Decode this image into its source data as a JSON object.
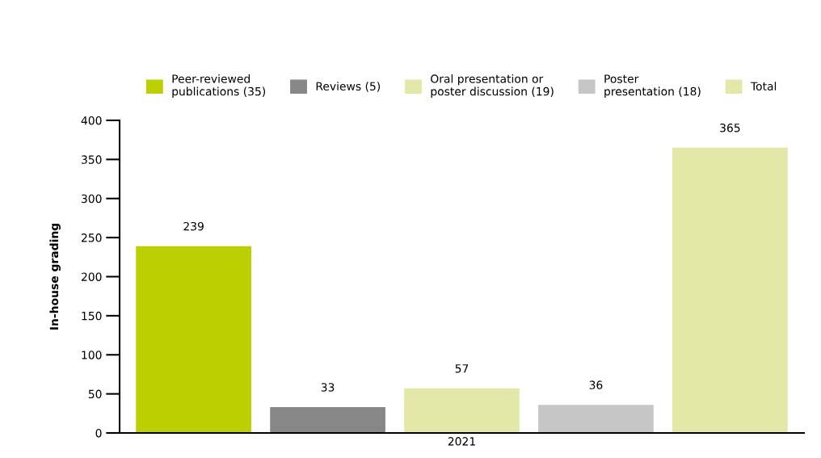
{
  "chart_data": {
    "type": "bar",
    "categories": [
      "2021"
    ],
    "ylabel": "In-house grading",
    "series": [
      {
        "name": "Peer-reviewed\npublications (35)",
        "color": "#bccf00",
        "values": [
          239
        ]
      },
      {
        "name": "Reviews (5)",
        "color": "#878787",
        "values": [
          33
        ]
      },
      {
        "name": "Oral presentation or\nposter discussion (19)",
        "color": "#e3e8a8",
        "values": [
          57
        ]
      },
      {
        "name": "Poster\npresentation (18)",
        "color": "#c6c6c6",
        "values": [
          36
        ]
      },
      {
        "name": "Total",
        "color": "#e3e8a8",
        "values": [
          365
        ]
      }
    ],
    "ylim": [
      0,
      400
    ],
    "yticks": [
      0,
      50,
      100,
      150,
      200,
      250,
      300,
      350,
      400
    ],
    "data_labels": true,
    "legend": "top",
    "grid": false
  }
}
